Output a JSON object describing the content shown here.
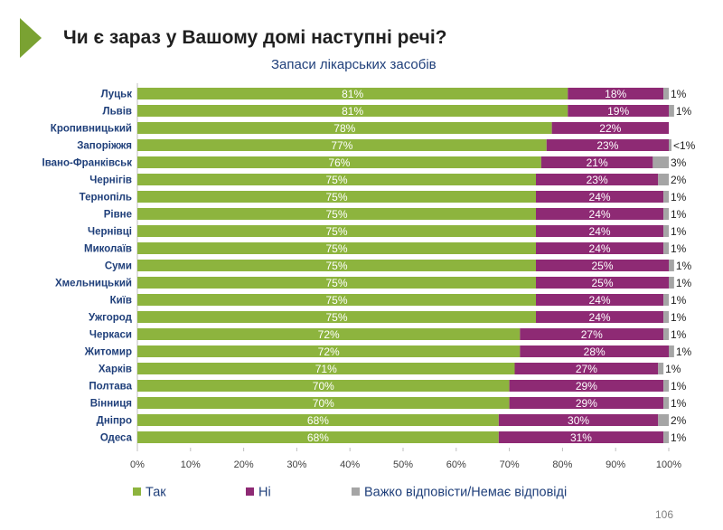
{
  "header": {
    "title": "Чи є зараз у Вашому домі наступні речі?",
    "subtitle": "Запаси лікарських засобів"
  },
  "page_number": "106",
  "colors": {
    "tak": "#8db43e",
    "ni": "#8e2a74",
    "hard": "#a5a5a5",
    "accent": "#7aa232"
  },
  "chart_data": {
    "type": "bar",
    "orientation": "horizontal",
    "stacked": true,
    "categories": [
      "Луцьк",
      "Львів",
      "Кропивницький",
      "Запоріжжя",
      "Івано-Франківськ",
      "Чернігів",
      "Тернопіль",
      "Рівне",
      "Чернівці",
      "Миколаїв",
      "Суми",
      "Хмельницький",
      "Київ",
      "Ужгород",
      "Черкаси",
      "Житомир",
      "Харків",
      "Полтава",
      "Вінниця",
      "Дніпро",
      "Одеса"
    ],
    "series": [
      {
        "name": "Так",
        "values": [
          81,
          81,
          78,
          77,
          76,
          75,
          75,
          75,
          75,
          75,
          75,
          75,
          75,
          75,
          72,
          72,
          71,
          70,
          70,
          68,
          68
        ],
        "labels": [
          "81%",
          "81%",
          "78%",
          "77%",
          "76%",
          "75%",
          "75%",
          "75%",
          "75%",
          "75%",
          "75%",
          "75%",
          "75%",
          "75%",
          "72%",
          "72%",
          "71%",
          "70%",
          "70%",
          "68%",
          "68%"
        ]
      },
      {
        "name": "Ні",
        "values": [
          18,
          19,
          22,
          23,
          21,
          23,
          24,
          24,
          24,
          24,
          25,
          25,
          24,
          24,
          27,
          28,
          27,
          29,
          29,
          30,
          31
        ],
        "labels": [
          "18%",
          "19%",
          "22%",
          "23%",
          "21%",
          "23%",
          "24%",
          "24%",
          "24%",
          "24%",
          "25%",
          "25%",
          "24%",
          "24%",
          "27%",
          "28%",
          "27%",
          "29%",
          "29%",
          "30%",
          "31%"
        ]
      },
      {
        "name": "Важко відповісти/Немає відповіді",
        "values": [
          1,
          1,
          0,
          0.5,
          3,
          2,
          1,
          1,
          1,
          1,
          1,
          1,
          1,
          1,
          1,
          1,
          1,
          1,
          1,
          2,
          1
        ],
        "labels": [
          "1%",
          "1%",
          "",
          "<1%",
          "3%",
          "2%",
          "1%",
          "1%",
          "1%",
          "1%",
          "1%",
          "1%",
          "1%",
          "1%",
          "1%",
          "1%",
          "1%",
          "1%",
          "1%",
          "2%",
          "1%"
        ]
      }
    ],
    "xlim": [
      0,
      100
    ],
    "xticks": [
      "0%",
      "10%",
      "20%",
      "30%",
      "40%",
      "50%",
      "60%",
      "70%",
      "80%",
      "90%",
      "100%"
    ],
    "legend_position": "bottom",
    "grid": true
  }
}
